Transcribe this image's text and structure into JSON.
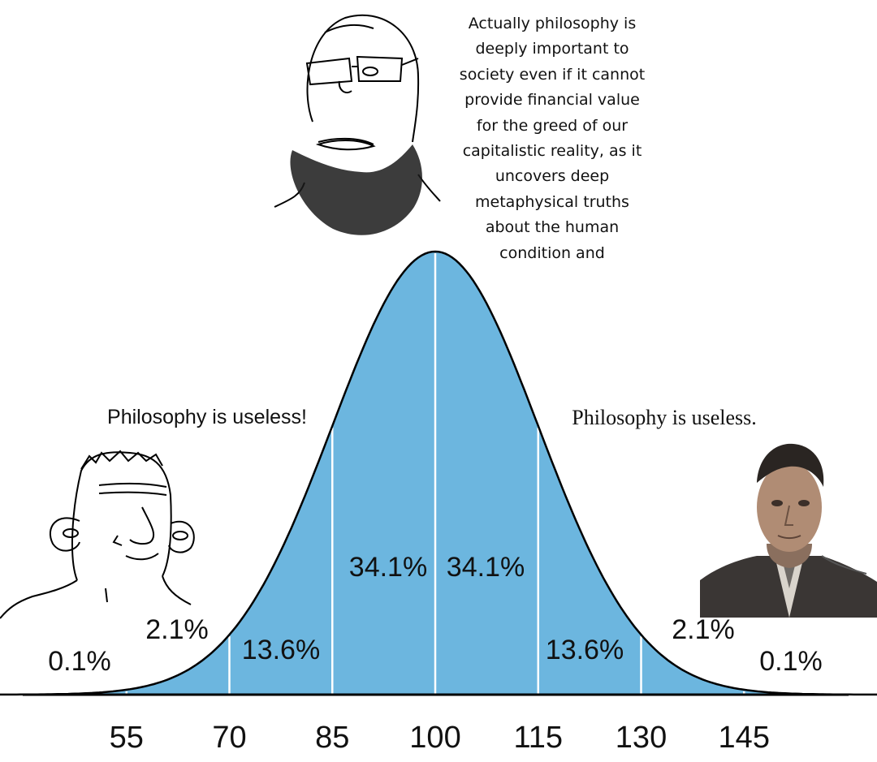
{
  "captions": {
    "top": [
      "Actually philosophy is",
      "deeply important to",
      "society even if it cannot",
      "provide financial value",
      "for the greed of our",
      "capitalistic reality, as it",
      "uncovers deep",
      "metaphysical truths",
      "about the human",
      "condition and"
    ],
    "left": "Philosophy is useless!",
    "right": "Philosophy is useless."
  },
  "colors": {
    "fill": "#6cb6df",
    "divider": "#ffffff",
    "outline": "#000000"
  },
  "chart_data": {
    "type": "area",
    "distribution": "normal",
    "mean": 100,
    "sd": 15,
    "x_ticks": [
      55,
      70,
      85,
      100,
      115,
      130,
      145
    ],
    "xlim": [
      40,
      160
    ],
    "segments": [
      {
        "label": "0.1%",
        "from": 40,
        "to": 55
      },
      {
        "label": "2.1%",
        "from": 55,
        "to": 70
      },
      {
        "label": "13.6%",
        "from": 70,
        "to": 85
      },
      {
        "label": "34.1%",
        "from": 85,
        "to": 100
      },
      {
        "label": "34.1%",
        "from": 100,
        "to": 115
      },
      {
        "label": "13.6%",
        "from": 115,
        "to": 130
      },
      {
        "label": "2.1%",
        "from": 130,
        "to": 145
      },
      {
        "label": "0.1%",
        "from": 145,
        "to": 160
      }
    ]
  },
  "figures": {
    "top": "bearded-wojak-with-glasses",
    "left": "smiling-simple-face",
    "right": "man-in-tweed-jacket-photo"
  }
}
